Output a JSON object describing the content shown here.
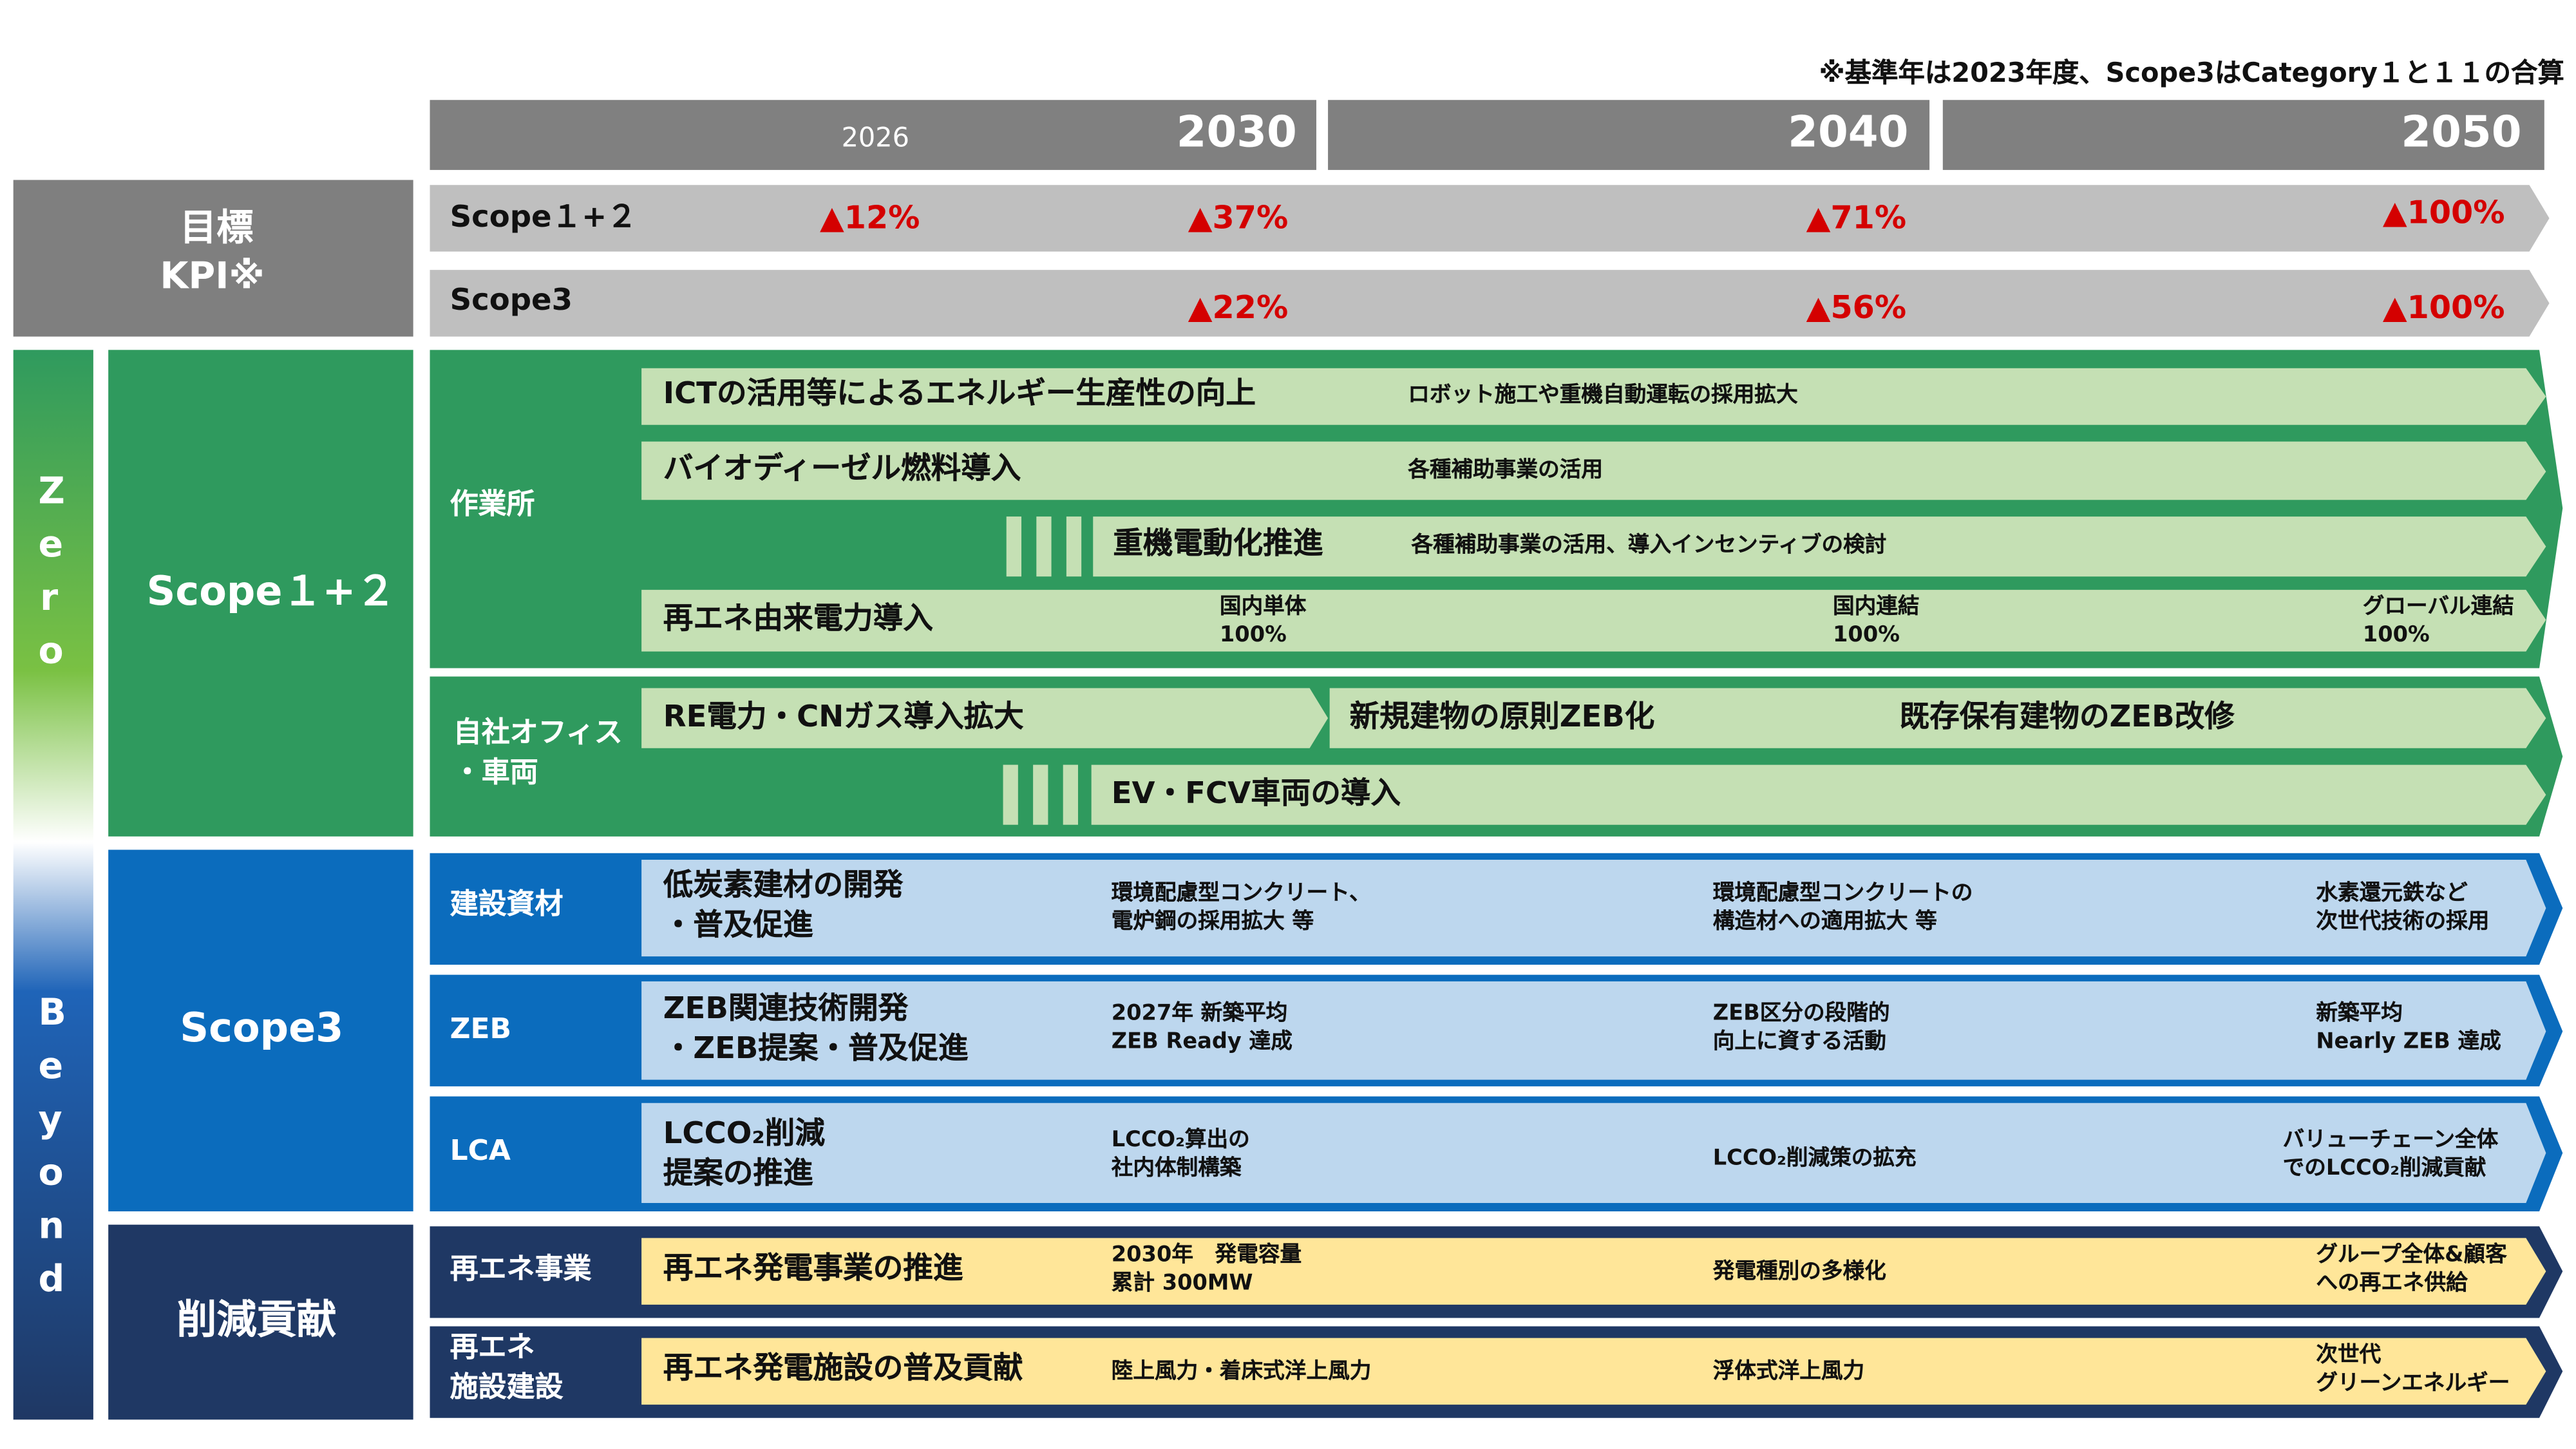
{
  "note": "※基準年は2023年度、Scope3はCategory１と１１の合算",
  "years": {
    "y2026": "2026",
    "y2030": "2030",
    "y2040": "2040",
    "y2050": "2050"
  },
  "kpi": {
    "label_line1": "目標",
    "label_line2": "KPI※",
    "scope12": {
      "label": "Scope１+２",
      "v2026": "▲12%",
      "v2030": "▲37%",
      "v2040": "▲71%",
      "v2050": "▲100%"
    },
    "scope3": {
      "label": "Scope3",
      "v2030": "▲22%",
      "v2040": "▲56%",
      "v2050": "▲100%"
    }
  },
  "zero_beyond": {
    "zero": [
      "Z",
      "e",
      "r",
      "o"
    ],
    "beyond": [
      "B",
      "e",
      "y",
      "o",
      "n",
      "d"
    ]
  },
  "scope12_section": {
    "title": "Scope１+２",
    "worksite": {
      "label": "作業所",
      "ict": {
        "title": "ICTの活用等によるエネルギー生産性の向上",
        "detail": "ロボット施工や重機自動運転の採用拡大"
      },
      "biodiesel": {
        "title": "バイオディーゼル燃料導入",
        "detail": "各種補助事業の活用"
      },
      "electrification": {
        "title": "重機電動化推進",
        "detail": "各種補助事業の活用、導入インセンティブの検討"
      },
      "renewable": {
        "title": "再エネ由来電力導入",
        "m2030_line1": "国内単体",
        "m2030_line2": "100%",
        "m2040_line1": "国内連結",
        "m2040_line2": "100%",
        "m2050_line1": "グローバル連結",
        "m2050_line2": "100%"
      }
    },
    "office": {
      "label_line1": "自社オフィス",
      "label_line2": "・車両",
      "re_power": "RE電力・CNガス導入拡大",
      "zeb_new": "新規建物の原則ZEB化",
      "zeb_existing": "既存保有建物のZEB改修",
      "ev": "EV・FCV車両の導入"
    }
  },
  "scope3_section": {
    "title": "Scope3",
    "materials": {
      "label": "建設資材",
      "title_line1": "低炭素建材の開発",
      "title_line2": "・普及促進",
      "d2030": "環境配慮型コンクリート、\n電炉鋼の採用拡大 等",
      "d2040": "環境配慮型コンクリートの\n構造材への適用拡大 等",
      "d2050": "水素還元鉄など\n次世代技術の採用"
    },
    "zeb": {
      "label": "ZEB",
      "title_line1": "ZEB関連技術開発",
      "title_line2": "・ZEB提案・普及促進",
      "d2030": "2027年 新築平均\nZEB Ready 達成",
      "d2040": "ZEB区分の段階的\n向上に資する活動",
      "d2050": "新築平均\nNearly ZEB 達成"
    },
    "lca": {
      "label": "LCA",
      "title_line1": "LCCO₂削減",
      "title_line2": "提案の推進",
      "d2030": "LCCO₂算出の\n社内体制構築",
      "d2040": "LCCO₂削減策の拡充",
      "d2050": "バリューチェーン全体\nでのLCCO₂削減貢献"
    }
  },
  "contribution_section": {
    "title": "削減貢献",
    "re_business": {
      "label": "再エネ事業",
      "title": "再エネ発電事業の推進",
      "d2030": "2030年　発電容量\n累計 300MW",
      "d2040": "発電種別の多様化",
      "d2050": "グループ全体&顧客\nへの再エネ供給"
    },
    "re_facility": {
      "label_line1": "再エネ",
      "label_line2": "施設建設",
      "title": "再エネ発電施設の普及貢献",
      "d2030": "陸上風力・着床式洋上風力",
      "d2040": "浮体式洋上風力",
      "d2050": "次世代\nグリーンエネルギー"
    }
  },
  "colors": {
    "kpi_gray": "#7f7f7f",
    "kpi_bar": "#bfbfbf",
    "green_dark": "#2f9a5e",
    "green_light": "#c5e0b4",
    "blue_dark": "#0b6cbd",
    "blue_light": "#bdd7ee",
    "navy": "#1f3864",
    "yellow_light": "#ffe699",
    "red": "#d40000"
  }
}
